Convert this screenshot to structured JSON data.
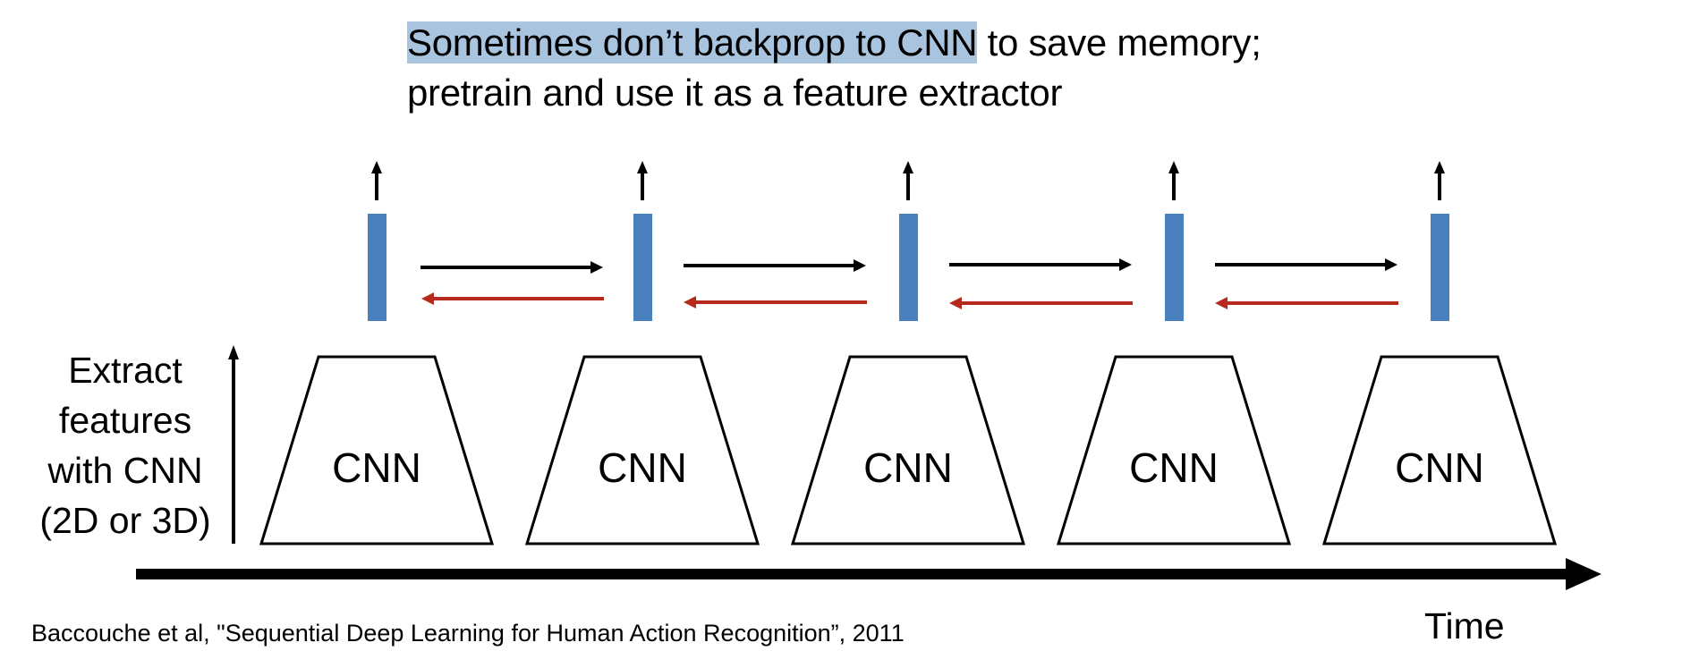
{
  "headline": {
    "highlighted": "Sometimes don’t backprop to CNN",
    "rest_line1": " to save memory;",
    "line2": "pretrain and use it as a feature extractor"
  },
  "left_label": {
    "lines": [
      "Extract",
      "features",
      "with CNN",
      "(2D or 3D)"
    ]
  },
  "cnn_label": "CNN",
  "time_label": "Time",
  "citation": "Baccouche et al, \"Sequential Deep Learning for Human Action Recognition”, 2011",
  "colors": {
    "feature_bar": "#4a80be",
    "forward_arrow": "#000000",
    "backward_arrow": "#b52a1c",
    "highlight": "#a8c4de"
  }
}
